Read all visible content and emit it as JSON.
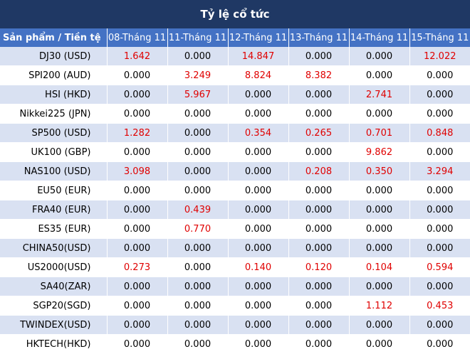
{
  "title": "Tỷ lệ cổ tức",
  "header": [
    "Sản phẩm / Tiền tệ",
    "08-Tháng 11",
    "11-Tháng 11",
    "12-Tháng 11",
    "13-Tháng 11",
    "14-Tháng 11",
    "15-Tháng 11"
  ],
  "colors": {
    "title_bg": "#1f3864",
    "header_bg": "#4472c4",
    "shaded_row": "#d9e1f2",
    "positive_value": "#e00000"
  },
  "rows": [
    {
      "name": "DJ30 (USD)",
      "values": [
        "1.642",
        "0.000",
        "14.847",
        "0.000",
        "0.000",
        "12.022"
      ]
    },
    {
      "name": "SPI200 (AUD)",
      "values": [
        "0.000",
        "3.249",
        "8.824",
        "8.382",
        "0.000",
        "0.000"
      ]
    },
    {
      "name": "HSI (HKD)",
      "values": [
        "0.000",
        "5.967",
        "0.000",
        "0.000",
        "2.741",
        "0.000"
      ]
    },
    {
      "name": "Nikkei225 (JPN)",
      "values": [
        "0.000",
        "0.000",
        "0.000",
        "0.000",
        "0.000",
        "0.000"
      ]
    },
    {
      "name": "SP500 (USD)",
      "values": [
        "1.282",
        "0.000",
        "0.354",
        "0.265",
        "0.701",
        "0.848"
      ]
    },
    {
      "name": "UK100 (GBP)",
      "values": [
        "0.000",
        "0.000",
        "0.000",
        "0.000",
        "9.862",
        "0.000"
      ]
    },
    {
      "name": "NAS100 (USD)",
      "values": [
        "3.098",
        "0.000",
        "0.000",
        "0.208",
        "0.350",
        "3.294"
      ]
    },
    {
      "name": "EU50 (EUR)",
      "values": [
        "0.000",
        "0.000",
        "0.000",
        "0.000",
        "0.000",
        "0.000"
      ]
    },
    {
      "name": "FRA40 (EUR)",
      "values": [
        "0.000",
        "0.439",
        "0.000",
        "0.000",
        "0.000",
        "0.000"
      ]
    },
    {
      "name": "ES35 (EUR)",
      "values": [
        "0.000",
        "0.770",
        "0.000",
        "0.000",
        "0.000",
        "0.000"
      ]
    },
    {
      "name": "CHINA50(USD)",
      "values": [
        "0.000",
        "0.000",
        "0.000",
        "0.000",
        "0.000",
        "0.000"
      ]
    },
    {
      "name": "US2000(USD)",
      "values": [
        "0.273",
        "0.000",
        "0.140",
        "0.120",
        "0.104",
        "0.594"
      ]
    },
    {
      "name": "SA40(ZAR)",
      "values": [
        "0.000",
        "0.000",
        "0.000",
        "0.000",
        "0.000",
        "0.000"
      ]
    },
    {
      "name": "SGP20(SGD)",
      "values": [
        "0.000",
        "0.000",
        "0.000",
        "0.000",
        "1.112",
        "0.453"
      ]
    },
    {
      "name": "TWINDEX(USD)",
      "values": [
        "0.000",
        "0.000",
        "0.000",
        "0.000",
        "0.000",
        "0.000"
      ]
    },
    {
      "name": "HKTECH(HKD)",
      "values": [
        "0.000",
        "0.000",
        "0.000",
        "0.000",
        "0.000",
        "0.000"
      ]
    }
  ]
}
